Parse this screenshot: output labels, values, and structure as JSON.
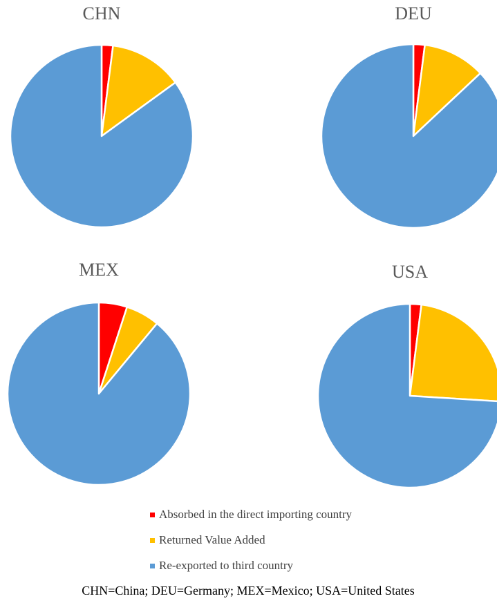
{
  "chart_data": [
    {
      "type": "pie",
      "title": "CHN",
      "categories": [
        "Absorbed in the direct importing country",
        "Returned Value Added",
        "Re-exported to third country"
      ],
      "values": [
        2,
        13,
        85
      ],
      "colors": [
        "#ff0000",
        "#ffc000",
        "#5b9bd5"
      ]
    },
    {
      "type": "pie",
      "title": "DEU",
      "categories": [
        "Absorbed in the direct importing country",
        "Returned Value Added",
        "Re-exported to third country"
      ],
      "values": [
        2,
        11,
        87
      ],
      "colors": [
        "#ff0000",
        "#ffc000",
        "#5b9bd5"
      ]
    },
    {
      "type": "pie",
      "title": "MEX",
      "categories": [
        "Absorbed in the direct importing country",
        "Returned Value Added",
        "Re-exported to third country"
      ],
      "values": [
        5,
        6,
        89
      ],
      "colors": [
        "#ff0000",
        "#ffc000",
        "#5b9bd5"
      ]
    },
    {
      "type": "pie",
      "title": "USA",
      "categories": [
        "Absorbed in the direct importing country",
        "Returned Value Added",
        "Re-exported to third country"
      ],
      "values": [
        2,
        24,
        74
      ],
      "colors": [
        "#ff0000",
        "#ffc000",
        "#5b9bd5"
      ]
    }
  ],
  "footnote": "CHN=China; DEU=Germany; MEX=Mexico; USA=United States"
}
